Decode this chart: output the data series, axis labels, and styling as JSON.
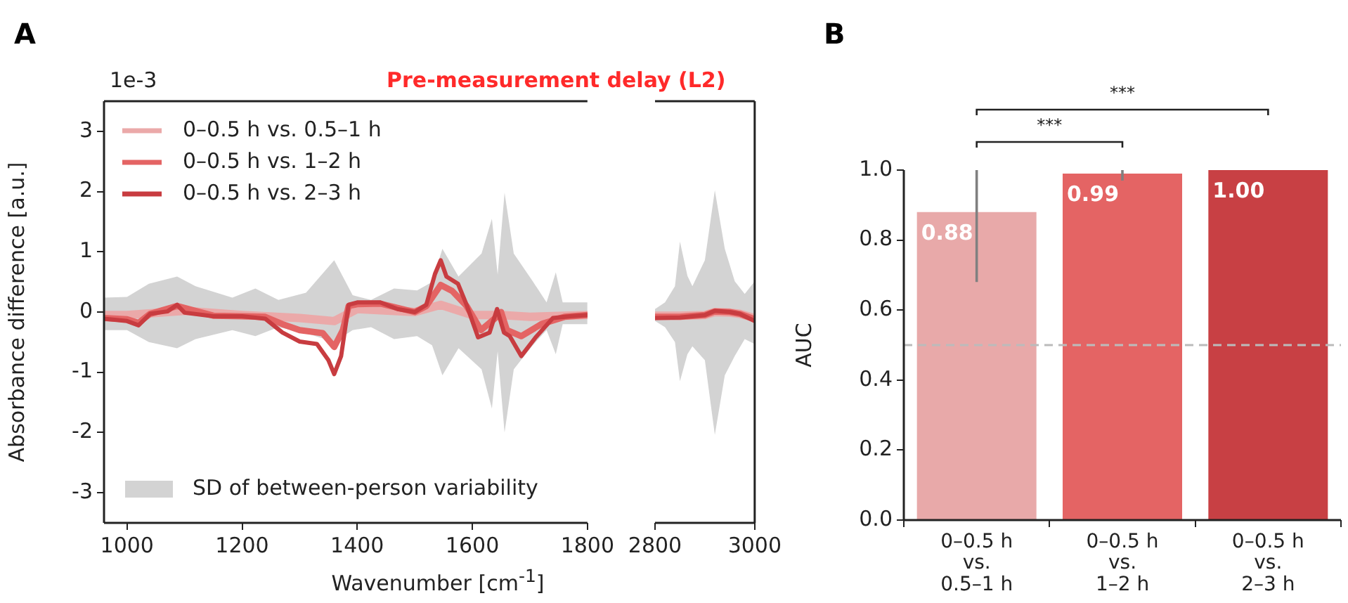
{
  "chart_data": [
    {
      "type": "line",
      "title": "A",
      "ylabel": "Absorbance difference [a.u.]",
      "xlabel": "Wavenumber [cm$^{-1}$]",
      "annotations": [
        "1e-3",
        "Pre-measurement delay (L2)"
      ],
      "xlim": [
        960,
        1800
      ],
      "xticks": [
        1000,
        1200,
        1400,
        1600,
        1800
      ],
      "ylim": [
        -3.5,
        3.5
      ],
      "yticks": [
        -3,
        -2,
        -1,
        0,
        1,
        2,
        3
      ],
      "legend": "top left",
      "series": [
        {
          "name": "SD of between-person variability",
          "type": "area",
          "color": "#d3d3d3",
          "x": [
            960,
            1000,
            1038,
            1087,
            1119,
            1183,
            1223,
            1263,
            1311,
            1360,
            1392,
            1424,
            1464,
            1504,
            1530,
            1548,
            1576,
            1616,
            1634,
            1644,
            1656,
            1672,
            1705,
            1729,
            1745,
            1757,
            1800
          ],
          "values": [
            0.24,
            0.25,
            0.47,
            0.59,
            0.43,
            0.24,
            0.39,
            0.2,
            0.32,
            0.86,
            0.28,
            0.2,
            0.39,
            0.36,
            0.5,
            1.05,
            0.59,
            0.97,
            1.55,
            0.62,
            1.98,
            0.97,
            0.51,
            0.16,
            0.66,
            0.16,
            0.16
          ]
        },
        {
          "type": "area",
          "color": "#d3d3d3",
          "x": [
            960,
            1000,
            1038,
            1087,
            1119,
            1183,
            1223,
            1263,
            1311,
            1360,
            1392,
            1424,
            1464,
            1504,
            1530,
            1548,
            1576,
            1616,
            1634,
            1644,
            1656,
            1672,
            1705,
            1729,
            1745,
            1757,
            1800
          ],
          "values": [
            -0.3,
            -0.3,
            -0.5,
            -0.6,
            -0.45,
            -0.3,
            -0.4,
            -0.25,
            -0.35,
            -0.5,
            -0.3,
            -0.25,
            -0.45,
            -0.4,
            -0.55,
            -1.05,
            -0.6,
            -0.95,
            -1.6,
            -0.65,
            -2.0,
            -0.95,
            -0.55,
            -0.3,
            -0.7,
            -0.2,
            -0.2
          ]
        },
        {
          "name": "0–0.5 h vs. 0.5–1 h",
          "color": "#eba9a9",
          "x": [
            960,
            1000,
            1100,
            1200,
            1300,
            1360,
            1400,
            1500,
            1545,
            1600,
            1650,
            1700,
            1800
          ],
          "values": [
            -0.05,
            -0.05,
            0.02,
            -0.05,
            -0.1,
            -0.15,
            0.05,
            0,
            0.12,
            -0.05,
            -0.05,
            -0.08,
            -0.05
          ]
        },
        {
          "name": "0–0.5 h vs. 1–2 h",
          "color": "#e46464",
          "x": [
            960,
            1000,
            1020,
            1040,
            1087,
            1150,
            1200,
            1240,
            1270,
            1300,
            1340,
            1360,
            1375,
            1385,
            1400,
            1440,
            1500,
            1520,
            1545,
            1565,
            1590,
            1615,
            1640,
            1650,
            1660,
            1685,
            1720,
            1760,
            1800
          ],
          "values": [
            -0.1,
            -0.12,
            -0.18,
            -0.03,
            0.1,
            -0.06,
            -0.07,
            -0.08,
            -0.2,
            -0.3,
            -0.35,
            -0.58,
            -0.3,
            0.1,
            0.13,
            0.14,
            0,
            0.1,
            0.45,
            0.35,
            0.1,
            -0.3,
            -0.1,
            0,
            -0.3,
            -0.4,
            -0.2,
            -0.08,
            -0.05
          ]
        },
        {
          "name": "0–0.5 h vs. 2–3 h",
          "color": "#c83c40",
          "x": [
            960,
            1000,
            1020,
            1040,
            1070,
            1087,
            1100,
            1150,
            1200,
            1240,
            1270,
            1300,
            1330,
            1350,
            1360,
            1372,
            1385,
            1400,
            1440,
            1470,
            1500,
            1520,
            1535,
            1545,
            1555,
            1575,
            1590,
            1610,
            1630,
            1643,
            1655,
            1665,
            1685,
            1710,
            1740,
            1770,
            1800
          ],
          "values": [
            -0.11,
            -0.15,
            -0.22,
            -0.03,
            0.01,
            0.12,
            -0.01,
            -0.07,
            -0.07,
            -0.11,
            -0.34,
            -0.49,
            -0.53,
            -0.8,
            -1.03,
            -0.73,
            0.12,
            0.16,
            0.16,
            0.05,
            0,
            0.12,
            0.63,
            0.86,
            0.59,
            0.47,
            0.12,
            -0.42,
            -0.34,
            0.05,
            -0.34,
            -0.4,
            -0.73,
            -0.42,
            -0.1,
            -0.07,
            -0.05
          ]
        }
      ]
    },
    {
      "type": "line",
      "xlim": [
        2800,
        3000
      ],
      "xticks": [
        2800,
        3000
      ],
      "ylim": [
        -3.5,
        3.5
      ],
      "tick_labels": "x",
      "series": [
        {
          "type": "area",
          "color": "#d3d3d3",
          "x": [
            2800,
            2820,
            2840,
            2850,
            2865,
            2875,
            2900,
            2920,
            2940,
            2960,
            2980,
            3000
          ],
          "values": [
            0.05,
            0.16,
            0.43,
            1.17,
            0.6,
            0.43,
            0.86,
            2.02,
            1.05,
            0.51,
            0.3,
            0.51
          ]
        },
        {
          "type": "area",
          "color": "#d3d3d3",
          "x": [
            2800,
            2820,
            2840,
            2850,
            2865,
            2875,
            2900,
            2920,
            2940,
            2960,
            2980,
            3000
          ],
          "values": [
            -0.15,
            -0.25,
            -0.5,
            -1.15,
            -0.7,
            -0.57,
            -0.8,
            -2.04,
            -1.05,
            -0.73,
            -0.45,
            -0.53
          ]
        },
        {
          "color": "#eba9a9",
          "x": [
            2800,
            2850,
            2900,
            2920,
            2950,
            2970,
            3000
          ],
          "values": [
            -0.06,
            -0.06,
            -0.05,
            0,
            -0.01,
            -0.03,
            -0.1
          ]
        },
        {
          "color": "#e46464",
          "x": [
            2800,
            2850,
            2900,
            2920,
            2950,
            2970,
            3000
          ],
          "values": [
            -0.08,
            -0.08,
            -0.05,
            0.01,
            0,
            -0.03,
            -0.12
          ]
        },
        {
          "color": "#c83c40",
          "x": [
            2800,
            2850,
            2900,
            2920,
            2950,
            2970,
            3000
          ],
          "values": [
            -0.1,
            -0.09,
            -0.05,
            0.02,
            0,
            -0.03,
            -0.15
          ]
        }
      ]
    },
    {
      "type": "bar",
      "title": "B",
      "ylabel": "AUC",
      "categories": [
        "0–0.5 h\nvs.\n0.5–1 h",
        "0–0.5 h\nvs.\n1–2 h",
        "0–0.5 h\nvs.\n2–3 h"
      ],
      "values": [
        0.88,
        0.99,
        1.0
      ],
      "colors": [
        "#e8a9a9",
        "#e46464",
        "#c84044"
      ],
      "errors": [
        [
          0.68,
          1.0
        ],
        [
          0.97,
          1.0
        ],
        null
      ],
      "value_labels": [
        "0.88",
        "0.99",
        "1.00"
      ],
      "ylim": [
        0,
        1.0
      ],
      "yticks": [
        {
          "value": 0,
          "label": "0.0"
        },
        0.2,
        0.4,
        0.6,
        0.8,
        {
          "value": 1,
          "label": "1.0"
        }
      ],
      "ref_lines": [
        {
          "axis": "y",
          "value": 0.5,
          "color": "#bbbbbb",
          "line_style": "dashed"
        }
      ],
      "annotations": [
        "***",
        "***"
      ]
    }
  ]
}
